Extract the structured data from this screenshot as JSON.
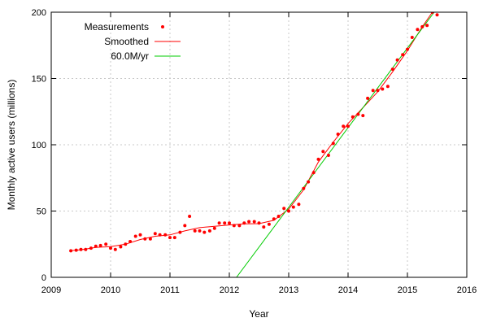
{
  "chart_data": {
    "type": "scatter",
    "title": "",
    "xlabel": "Year",
    "ylabel": "Monthly active users (millions)",
    "xlim": [
      2009,
      2016
    ],
    "ylim": [
      0,
      200
    ],
    "x_ticks": [
      2009,
      2010,
      2011,
      2012,
      2013,
      2014,
      2015,
      2016
    ],
    "y_ticks": [
      0,
      50,
      100,
      150,
      200
    ],
    "grid": true,
    "legend_position": "top-left",
    "series": [
      {
        "name": "Measurements",
        "kind": "points",
        "color": "#ff0000",
        "points": [
          [
            2009.33,
            20
          ],
          [
            2009.42,
            20.5
          ],
          [
            2009.5,
            21
          ],
          [
            2009.58,
            21
          ],
          [
            2009.67,
            22
          ],
          [
            2009.75,
            23.5
          ],
          [
            2009.83,
            24
          ],
          [
            2009.92,
            25
          ],
          [
            2010.0,
            22
          ],
          [
            2010.08,
            21
          ],
          [
            2010.17,
            23
          ],
          [
            2010.25,
            25
          ],
          [
            2010.33,
            27
          ],
          [
            2010.42,
            31
          ],
          [
            2010.5,
            32
          ],
          [
            2010.58,
            29
          ],
          [
            2010.67,
            29
          ],
          [
            2010.75,
            33
          ],
          [
            2010.83,
            32
          ],
          [
            2010.92,
            32
          ],
          [
            2011.0,
            30
          ],
          [
            2011.08,
            30
          ],
          [
            2011.17,
            34
          ],
          [
            2011.25,
            39
          ],
          [
            2011.33,
            46
          ],
          [
            2011.42,
            35
          ],
          [
            2011.5,
            35
          ],
          [
            2011.58,
            34
          ],
          [
            2011.67,
            35
          ],
          [
            2011.75,
            37
          ],
          [
            2011.83,
            41
          ],
          [
            2011.92,
            41
          ],
          [
            2012.0,
            41
          ],
          [
            2012.08,
            39
          ],
          [
            2012.17,
            39
          ],
          [
            2012.25,
            41
          ],
          [
            2012.33,
            42
          ],
          [
            2012.42,
            42
          ],
          [
            2012.5,
            41
          ],
          [
            2012.58,
            38
          ],
          [
            2012.67,
            40
          ],
          [
            2012.75,
            44
          ],
          [
            2012.83,
            46
          ],
          [
            2012.92,
            52
          ],
          [
            2013.0,
            50
          ],
          [
            2013.08,
            53
          ],
          [
            2013.17,
            55
          ],
          [
            2013.25,
            67
          ],
          [
            2013.33,
            72
          ],
          [
            2013.42,
            79
          ],
          [
            2013.5,
            89
          ],
          [
            2013.58,
            95
          ],
          [
            2013.67,
            92
          ],
          [
            2013.75,
            101
          ],
          [
            2013.83,
            108
          ],
          [
            2013.92,
            114
          ],
          [
            2014.0,
            114
          ],
          [
            2014.08,
            121
          ],
          [
            2014.17,
            123
          ],
          [
            2014.25,
            122
          ],
          [
            2014.33,
            135
          ],
          [
            2014.42,
            141
          ],
          [
            2014.5,
            141
          ],
          [
            2014.58,
            142
          ],
          [
            2014.67,
            144
          ],
          [
            2014.75,
            157
          ],
          [
            2014.83,
            164
          ],
          [
            2014.92,
            168
          ],
          [
            2015.0,
            172
          ],
          [
            2015.08,
            181
          ],
          [
            2015.17,
            187
          ],
          [
            2015.25,
            189
          ],
          [
            2015.33,
            190
          ],
          [
            2015.42,
            200
          ],
          [
            2015.5,
            198
          ]
        ]
      },
      {
        "name": "Smoothed",
        "kind": "line",
        "color": "#ff0000",
        "points": [
          [
            2009.33,
            20.2
          ],
          [
            2009.5,
            20.8
          ],
          [
            2009.75,
            22.5
          ],
          [
            2010.0,
            23.2
          ],
          [
            2010.25,
            25
          ],
          [
            2010.5,
            28.5
          ],
          [
            2010.75,
            31
          ],
          [
            2011.0,
            32
          ],
          [
            2011.25,
            35
          ],
          [
            2011.5,
            37.5
          ],
          [
            2011.75,
            38.5
          ],
          [
            2012.0,
            39.5
          ],
          [
            2012.25,
            40.3
          ],
          [
            2012.5,
            40.5
          ],
          [
            2012.75,
            43
          ],
          [
            2013.0,
            51.5
          ],
          [
            2013.25,
            66
          ],
          [
            2013.5,
            87
          ],
          [
            2013.75,
            102
          ],
          [
            2014.0,
            116
          ],
          [
            2014.25,
            128
          ],
          [
            2014.5,
            140
          ],
          [
            2014.75,
            155
          ],
          [
            2015.0,
            171
          ],
          [
            2015.25,
            189
          ],
          [
            2015.42,
            200
          ]
        ]
      },
      {
        "name": "60.0M/yr",
        "kind": "line",
        "color": "#00cc00",
        "points": [
          [
            2012.12,
            0
          ],
          [
            2015.45,
            200
          ]
        ]
      }
    ]
  }
}
